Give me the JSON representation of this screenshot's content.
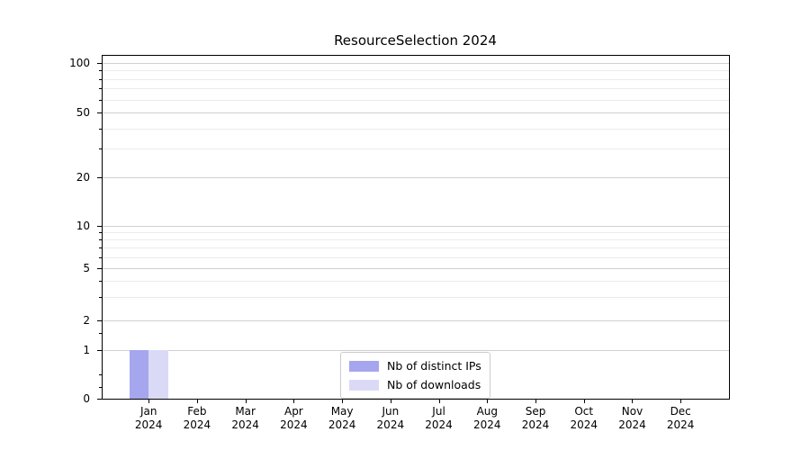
{
  "chart_data": {
    "type": "bar",
    "title": "ResourceSelection 2024",
    "categories": [
      "Jan 2024",
      "Feb 2024",
      "Mar 2024",
      "Apr 2024",
      "May 2024",
      "Jun 2024",
      "Jul 2024",
      "Aug 2024",
      "Sep 2024",
      "Oct 2024",
      "Nov 2024",
      "Dec 2024"
    ],
    "x": {
      "months": [
        "Jan",
        "Feb",
        "Mar",
        "Apr",
        "May",
        "Jun",
        "Jul",
        "Aug",
        "Sep",
        "Oct",
        "Nov",
        "Dec"
      ],
      "year": "2024"
    },
    "series": [
      {
        "name": "Nb of distinct IPs",
        "color": "#a6a6ee",
        "values": [
          1,
          0,
          0,
          0,
          0,
          0,
          0,
          0,
          0,
          0,
          0,
          0
        ]
      },
      {
        "name": "Nb of downloads",
        "color": "#dadaf7",
        "values": [
          1,
          0,
          0,
          0,
          0,
          0,
          0,
          0,
          0,
          0,
          0,
          0
        ]
      }
    ],
    "y_axis": {
      "scale": "symlog",
      "ticks": [
        0,
        1,
        2,
        5,
        10,
        20,
        50,
        100
      ],
      "tick_labels": [
        "0",
        "1",
        "2",
        "5",
        "10",
        "20",
        "50",
        "100"
      ],
      "minor_gridlines": [
        3,
        4,
        6,
        7,
        8,
        9,
        30,
        40,
        60,
        70,
        80,
        90
      ],
      "minor_ticks_extra": [
        1.5,
        0.5,
        0.25
      ],
      "ylim": [
        0,
        112
      ]
    },
    "grid": {
      "which": "both",
      "major_color": "#d0d0d0",
      "minor_color": "#ebebeb"
    },
    "legend": {
      "position": "lower center"
    }
  }
}
